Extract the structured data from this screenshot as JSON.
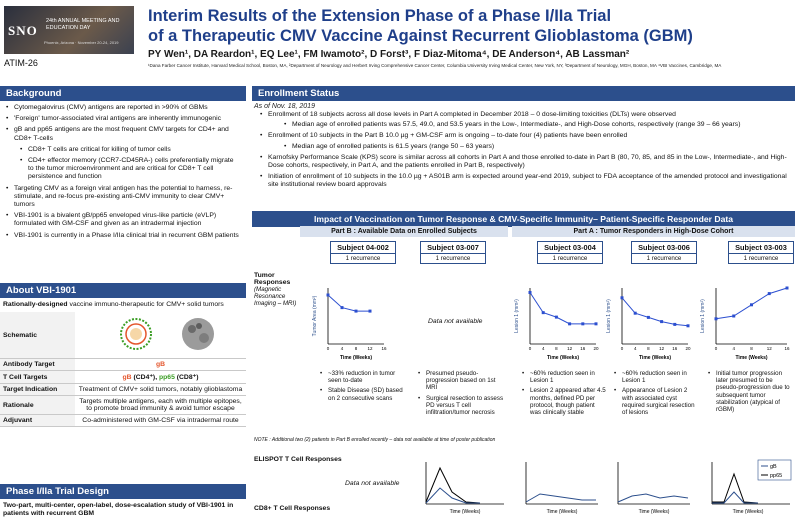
{
  "header": {
    "logo_text": "SNO",
    "meeting_text": "24th ANNUAL MEETING AND EDUCATION DAY",
    "meeting_location": "Phoenix, Arizona · November 20-24, 2019",
    "abstract_id": "ATIM-26",
    "title_line1": "Interim Results of the Extension Phase of a Phase I/IIa Trial",
    "title_line2": "of a Therapeutic CMV Vaccine Against Recurrent Glioblastoma (GBM)",
    "authors": "PY Wen¹, DA Reardon¹, EQ Lee¹, FM Iwamoto², D Forst³, F Diaz-Mitoma⁴, DE Anderson⁴, AB Lassman²",
    "affiliations": "¹Dana Farber Cancer Institute, Harvard Medical School, Boston, MA, ²Department of Neurology and Herbert Irving Comprehensive Cancer Center, Columbia University Irving Medical Center, New York, NY, ³Department of Neurology, MGH, Boston, MA ⁴VBI Vaccines, Cambridge, MA"
  },
  "background": {
    "heading": "Background",
    "items": [
      "Cytomegalovirus (CMV) antigens are reported in >90% of GBMs",
      "'Foreign' tumor-associated viral antigens are inherently immunogenic",
      "gB and pp65 antigens are the most frequent CMV targets for CD4+ and CD8+ T-cells"
    ],
    "subitems": [
      "CD8+ T cells are critical for killing of tumor cells",
      "CD4+ effector memory (CCR7-CD45RA-) cells preferentially migrate to the tumor microenvironment and are critical for CD8+ T cell persistence and function"
    ],
    "items2": [
      "Targeting CMV as a foreign viral antigen has the potential to harness, re-stimulate, and re-focus pre-existing anti-CMV immunity to clear CMV+ tumors",
      "VBI-1901 is a bivalent gB/pp65 enveloped virus-like particle (eVLP) formulated with GM-CSF and given as an intradermal injection",
      "VBI-1901 is currently in a Phase I/IIa clinical trial in recurrent GBM patients"
    ]
  },
  "about": {
    "heading": "About VBI-1901",
    "intro_bold": "Rationally-designed",
    "intro_rest": " vaccine immuno-therapeutic for CMV+ solid tumors",
    "rows": [
      {
        "key": "Schematic",
        "val": ""
      },
      {
        "key": "Antibody Target",
        "val": "gB"
      },
      {
        "key": "T Cell Targets",
        "val": "gB (CD4⁺), pp65 (CD8⁺)"
      },
      {
        "key": "Target Indication",
        "val": "Treatment of CMV+ solid tumors, notably glioblastoma"
      },
      {
        "key": "Rationale",
        "val": "Targets multiple antigens, each with multiple epitopes, to promote broad immunity & avoid tumor escape"
      },
      {
        "key": "Adjuvant",
        "val": "Co-administered with GM-CSF via intradermal route"
      }
    ],
    "gb_color": "#e4572e",
    "pp65_color": "#3a9d23"
  },
  "design": {
    "heading": "Phase I/IIa Trial Design",
    "text": "Two-part, multi-center, open-label, dose-escalation study of VBI-1901 in patients with recurrent GBM"
  },
  "enrollment": {
    "heading": "Enrollment Status",
    "date": "As of Nov. 18, 2019",
    "items": [
      "Enrollment of 18 subjects across all dose levels in Part A completed in December 2018 – 0 dose-limiting toxicities (DLTs) were observed",
      "Enrollment of 10 subjects in the Part B 10.0 µg + GM-CSF arm is ongoing – to-date four (4) patients have been enrolled",
      "Karnofsky Performance Scale (KPS) score is similar across all cohorts in Part A and those enrolled to-date in Part B (80, 70, 85, and 85 in the Low-, Intermediate-, and High-Dose cohorts, respectively, in Part A, and the patients enrolled in Part B, respectively)",
      "Initiation of enrollment of 10 subjects in the 10.0 µg + AS01B arm is expected around year-end 2019, subject to FDA acceptance of the amended protocol and investigational site institutional review board approvals"
    ],
    "sub1": "Median age of enrolled patients was 57.5, 49.0, and 53.5 years in the Low-, Intermediate-, and High-Dose cohorts, respectively (range 39 – 66 years)",
    "sub2": "Median age of enrolled patients is 61.5 years (range 50 – 63 years)"
  },
  "impact": {
    "heading": "Impact of Vaccination on Tumor Response & CMV-Specific Immunity– Patient-Specific Responder Data",
    "partB": "Part B : Available Data on Enrolled Subjects",
    "partA": "Part A : Tumor Responders in High-Dose Cohort",
    "subjects": [
      {
        "id": "Subject 04-002",
        "rec": "1 recurrence"
      },
      {
        "id": "Subject 03-007",
        "rec": "1 recurrence"
      },
      {
        "id": "Subject 03-004",
        "rec": "1 recurrence"
      },
      {
        "id": "Subject 03-006",
        "rec": "1 recurrence"
      },
      {
        "id": "Subject 03-003",
        "rec": "1 recurrence"
      }
    ],
    "tumor_label": "Tumor Responses",
    "tumor_sub": "(Magnetic Resonance Imaging – MRI)",
    "not_available": "Data not available",
    "elispot_label": "ELISPOT T Cell Responses",
    "cd8_label": "CD8+ T Cell Responses",
    "note": "NOTE : Additional two (2) patients in Part B enrolled recently – data not available at time of poster publication",
    "notes_04002": [
      "~33% reduction in tumor seen to-date",
      "Stable Disease (SD) based on 2 consecutive scans"
    ],
    "notes_03007": [
      "Presumed pseudo-progression based on 1st MRI",
      "Surgical resection to assess PD versus T cell infiltration/tumor necrosis"
    ],
    "notes_03004": [
      "~60% reduction seen in Lesion 1",
      "Lesion 2 appeared after 4.5 months, defined PD per protocol, though patient was clinically stable"
    ],
    "notes_03006": [
      "~60% reduction seen in Lesion 1",
      "Appearance of Lesion 2 with associated cyst required surgical resection of lesions"
    ],
    "notes_03003": [
      "Initial tumor progression later presumed to be pseudo-progression due to subsequent tumor stabilization (atypical of rGBM)"
    ],
    "legend": [
      "gB",
      "pp65"
    ]
  },
  "chart_data": [
    {
      "type": "line",
      "ylabel": "Tumor Area (mm²)",
      "xlabel": "Time (Weeks)",
      "x": [
        0,
        4,
        8,
        12
      ],
      "values": [
        350,
        260,
        235,
        235
      ],
      "ylim": [
        0,
        400
      ],
      "xlim": [
        0,
        16
      ]
    },
    {
      "type": "line",
      "ylabel": "Lesion 1 (mm²)",
      "xlabel": "Time (Weeks)",
      "x": [
        0,
        4,
        8,
        12,
        16,
        20
      ],
      "values": [
        230,
        140,
        120,
        90,
        90,
        90
      ],
      "ylim": [
        0,
        250
      ],
      "xlim": [
        0,
        20
      ]
    },
    {
      "type": "line",
      "ylabel": "Lesion 1 (mm²)",
      "xlabel": "Time (Weeks)",
      "x": [
        0,
        4,
        8,
        12,
        16,
        20
      ],
      "values": [
        330,
        220,
        190,
        160,
        140,
        130
      ],
      "ylim": [
        0,
        400
      ],
      "xlim": [
        0,
        20
      ]
    },
    {
      "type": "line",
      "ylabel": "Lesion 1 (mm²)",
      "xlabel": "Time (Weeks)",
      "x": [
        0,
        4,
        8,
        12,
        16
      ],
      "values": [
        900,
        1000,
        1400,
        1800,
        2000
      ],
      "ylim": [
        0,
        2000
      ],
      "xlim": [
        0,
        16
      ]
    }
  ]
}
